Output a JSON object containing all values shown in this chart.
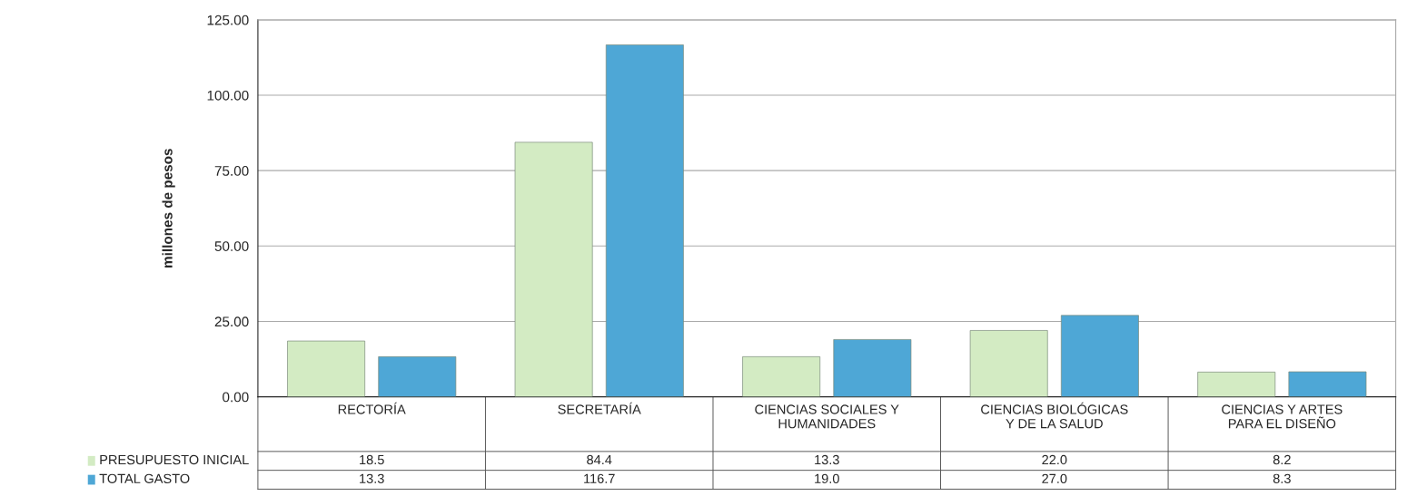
{
  "chart_data": {
    "type": "bar",
    "ylabel": "millones de pesos",
    "categories": [
      "RECTORÍA",
      "SECRETARÍA",
      "CIENCIAS SOCIALES Y\nHUMANIDADES",
      "CIENCIAS BIOLÓGICAS\nY DE LA SALUD",
      "CIENCIAS Y ARTES\nPARA EL DISEÑO"
    ],
    "series": [
      {
        "name": "PRESUPUESTO INICIAL",
        "color": "#d3ebc3",
        "values": [
          18.5,
          84.4,
          13.3,
          22.0,
          8.2
        ],
        "value_labels": [
          "18.5",
          "84.4",
          "13.3",
          "22.0",
          "8.2"
        ]
      },
      {
        "name": "TOTAL GASTO",
        "color": "#4ea7d6",
        "values": [
          13.3,
          116.7,
          19.0,
          27.0,
          8.3
        ],
        "value_labels": [
          "13.3",
          "116.7",
          "19.0",
          "27.0",
          "8.3"
        ]
      }
    ],
    "ylim": [
      0,
      125
    ],
    "yticks": [
      {
        "value": 0,
        "label": "0.00"
      },
      {
        "value": 25,
        "label": "25.00"
      },
      {
        "value": 50,
        "label": "50.00"
      },
      {
        "value": 75,
        "label": "75.00"
      },
      {
        "value": 100,
        "label": "100.00"
      },
      {
        "value": 125,
        "label": "125.00"
      }
    ],
    "grid": "y",
    "legend": "bottom left"
  }
}
